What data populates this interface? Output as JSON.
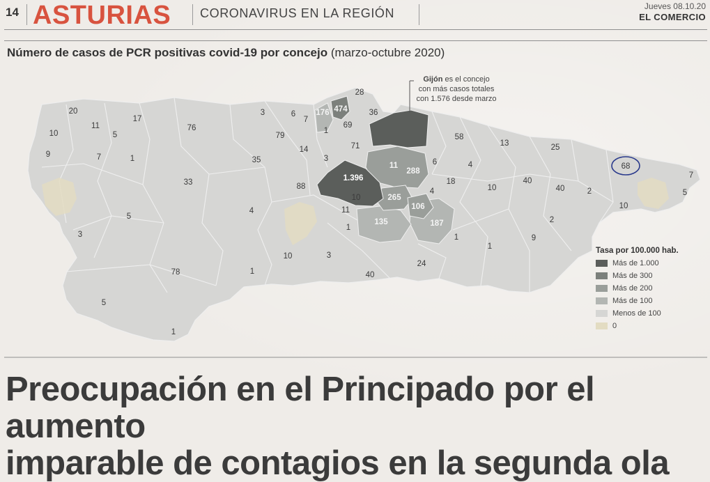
{
  "masthead": {
    "page_number": "14",
    "section": "ASTURIAS",
    "topic": "CORONAVIRUS EN LA REGIÓN",
    "date": "Jueves 08.10.20",
    "newspaper": "EL COMERCIO"
  },
  "map": {
    "title_bold": "Número de casos de PCR positivas covid-19 por concejo",
    "title_normal": "(marzo-octubre 2020)",
    "callout": {
      "highlight": "Gijón",
      "line1_rest": " es el concejo",
      "line2": "con más casos totales",
      "line3": "con 1.576 desde marzo"
    },
    "labels": {
      "l_20": "20",
      "l_17": "17",
      "l_11a": "11",
      "l_10a": "10",
      "l_5a": "5",
      "l_9": "9",
      "l_7a": "7",
      "l_1a": "1",
      "l_76": "76",
      "l_3a": "3",
      "l_6a": "6",
      "l_7b": "7",
      "l_176": "176",
      "l_474": "474",
      "l_28": "28",
      "l_36": "36",
      "l_69": "69",
      "l_1b": "1",
      "l_79": "79",
      "l_14": "14",
      "l_71": "71",
      "l_35": "35",
      "l_3b": "3",
      "l_33": "33",
      "l_88": "88",
      "l_1396": "1.396",
      "l_11b": "11",
      "l_288": "288",
      "l_58": "58",
      "l_13": "13",
      "l_25": "25",
      "l_6b": "6",
      "l_4a": "4",
      "l_68": "68",
      "l_7c": "7",
      "l_18": "18",
      "l_4b": "4",
      "l_10b": "10",
      "l_40a": "40",
      "l_40b": "40",
      "l_2a": "2",
      "l_10c": "10",
      "l_5b": "5",
      "l_265": "265",
      "l_106": "106",
      "l_11c": "11",
      "l_4c": "4",
      "l_5c": "5",
      "l_135": "135",
      "l_187": "187",
      "l_1c": "1",
      "l_3c": "3",
      "l_1d": "1",
      "l_2b": "2",
      "l_9b": "9",
      "l_1e": "1",
      "l_10d": "10",
      "l_3d": "3",
      "l_78": "78",
      "l_1f": "1",
      "l_40c": "40",
      "l_24": "24",
      "l_5d": "5",
      "l_1g": "1"
    },
    "legend": {
      "title": "Tasa por 100.000 hab.",
      "items": [
        {
          "label": "Más de 1.000",
          "color": "#5b5e5b"
        },
        {
          "label": "Más de 300",
          "color": "#7c807c"
        },
        {
          "label": "Más de 200",
          "color": "#9a9e9a"
        },
        {
          "label": "Más de 100",
          "color": "#b3b6b3"
        },
        {
          "label": "Menos de 100",
          "color": "#d6d6d4"
        },
        {
          "label": "0",
          "color": "#e3dcc2"
        }
      ]
    },
    "colors": {
      "base": "#d6d6d4",
      "over_100": "#b3b6b3",
      "over_200": "#9a9e9a",
      "over_300": "#7c807c",
      "over_1000": "#5b5e5b",
      "zero": "#e3dcc2",
      "handwritten_circle": "#2a3a8c"
    }
  },
  "headline": {
    "line1": "Preocupación en el Principado por el aumento",
    "line2": "imparable de contagios en la segunda ola"
  }
}
